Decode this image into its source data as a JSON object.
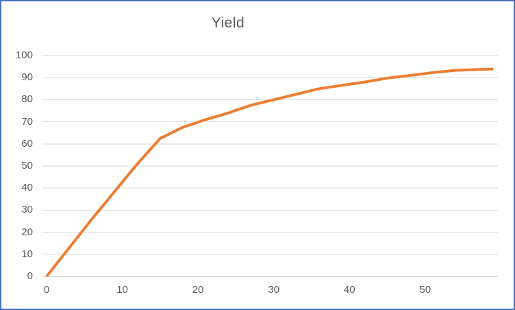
{
  "window": {
    "background": "#FFFFFF",
    "selection_border_color": "#4472C4"
  },
  "chart_data": {
    "type": "line",
    "title": "Yield",
    "xlabel": "",
    "ylabel": "",
    "legend": "none",
    "grid": "horizontal",
    "xlim": [
      0,
      59.6
    ],
    "ylim": [
      0,
      100
    ],
    "x_ticks": [
      0,
      10,
      20,
      30,
      40,
      50
    ],
    "y_ticks": [
      0,
      10,
      20,
      30,
      40,
      50,
      60,
      70,
      80,
      90,
      100
    ],
    "series": [
      {
        "name": "Yield",
        "color": "#ED7D31",
        "x": [
          0,
          3,
          6,
          9,
          12,
          15,
          18,
          21,
          24,
          27,
          30,
          33,
          36,
          39,
          42,
          45,
          48,
          51,
          54,
          57,
          59
        ],
        "y": [
          0,
          13,
          26,
          38.5,
          51,
          62.5,
          67.5,
          71,
          74,
          77.5,
          80,
          82.5,
          85,
          86.5,
          88,
          89.8,
          91,
          92.3,
          93.3,
          93.7,
          93.9
        ]
      }
    ],
    "colors": {
      "title": "#595959",
      "tick_labels": "#595959",
      "gridlines": "#D9D9D9",
      "axis_line": "#BFBFBF"
    }
  }
}
